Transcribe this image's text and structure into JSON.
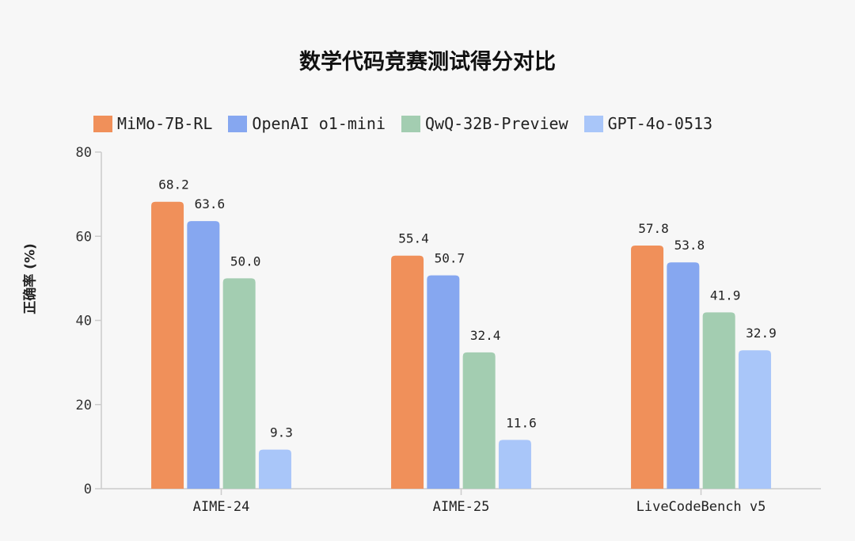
{
  "chart_data": {
    "type": "bar",
    "title": "数学代码竞赛测试得分对比",
    "xlabel": "",
    "ylabel": "正确率 (%)",
    "ylim": [
      0,
      80
    ],
    "yticks": [
      0,
      20,
      40,
      60,
      80
    ],
    "grid": false,
    "legend_position": "top",
    "categories": [
      "AIME-24",
      "AIME-25",
      "LiveCodeBench v5"
    ],
    "series": [
      {
        "name": "MiMo-7B-RL",
        "color": "#F0905A",
        "values": [
          68.2,
          55.4,
          57.8
        ]
      },
      {
        "name": "OpenAI o1-mini",
        "color": "#86A7F0",
        "values": [
          63.6,
          50.7,
          53.8
        ]
      },
      {
        "name": "QwQ-32B-Preview",
        "color": "#A3CDB1",
        "values": [
          50.0,
          32.4,
          41.9
        ]
      },
      {
        "name": "GPT-4o-0513",
        "color": "#A9C6F9",
        "values": [
          9.3,
          11.6,
          32.9
        ]
      }
    ]
  }
}
